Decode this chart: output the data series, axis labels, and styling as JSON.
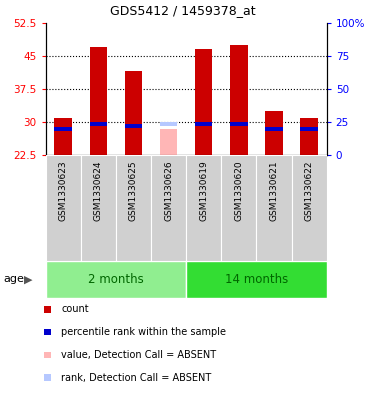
{
  "title": "GDS5412 / 1459378_at",
  "samples": [
    "GSM1330623",
    "GSM1330624",
    "GSM1330625",
    "GSM1330626",
    "GSM1330619",
    "GSM1330620",
    "GSM1330621",
    "GSM1330622"
  ],
  "count_values": [
    31.0,
    47.0,
    41.5,
    0,
    46.5,
    47.5,
    32.5,
    31.0
  ],
  "rank_values": [
    28.5,
    29.5,
    29.0,
    0,
    29.5,
    29.5,
    28.5,
    28.5
  ],
  "absent_value": [
    0,
    0,
    0,
    28.5,
    0,
    0,
    0,
    0
  ],
  "absent_rank": [
    0,
    0,
    0,
    29.5,
    0,
    0,
    0,
    0
  ],
  "ylim_left": [
    22.5,
    52.5
  ],
  "ylim_right": [
    0,
    100
  ],
  "yticks_left": [
    22.5,
    30,
    37.5,
    45,
    52.5
  ],
  "yticks_right": [
    0,
    25,
    50,
    75,
    100
  ],
  "ytick_labels_left": [
    "22.5",
    "30",
    "37.5",
    "45",
    "52.5"
  ],
  "ytick_labels_right": [
    "0",
    "25",
    "50",
    "75",
    "100%"
  ],
  "dotted_lines": [
    30,
    37.5,
    45
  ],
  "bar_width": 0.5,
  "count_color": "#cc0000",
  "rank_color": "#0000cc",
  "absent_value_color": "#ffb6b6",
  "absent_rank_color": "#b6c8ff",
  "group_2months_color": "#90ee90",
  "group_14months_color": "#33dd33",
  "group_divider_color": "#00aa00",
  "axis_bg_color": "#d0d0d0",
  "plot_bg_color": "#ffffff",
  "age_label": "age",
  "legend_items": [
    {
      "color": "#cc0000",
      "label": "count"
    },
    {
      "color": "#0000cc",
      "label": "percentile rank within the sample"
    },
    {
      "color": "#ffb6b6",
      "label": "value, Detection Call = ABSENT"
    },
    {
      "color": "#b6c8ff",
      "label": "rank, Detection Call = ABSENT"
    }
  ],
  "groups_def": [
    {
      "name": "2 months",
      "start": 0,
      "end": 3,
      "color": "#90ee90"
    },
    {
      "name": "14 months",
      "start": 4,
      "end": 7,
      "color": "#33dd33"
    }
  ]
}
